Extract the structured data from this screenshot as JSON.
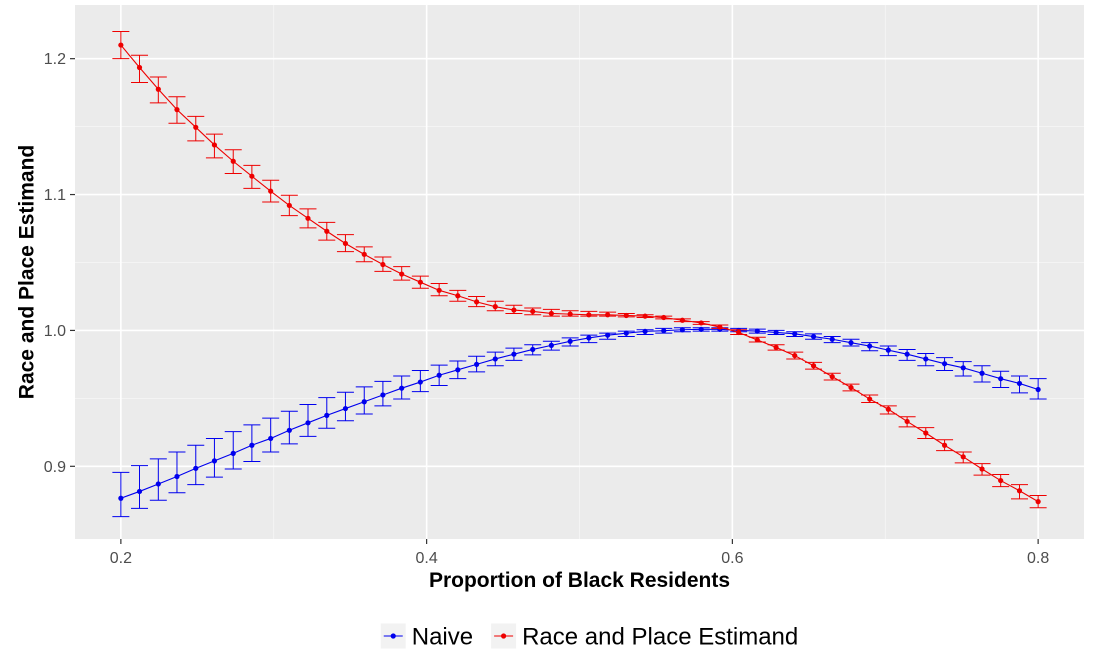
{
  "chart_data": {
    "type": "line",
    "xlabel": "Proportion of Black Residents",
    "ylabel": "Race and Place Estimand",
    "xlim": [
      0.17,
      0.83
    ],
    "ylim": [
      0.8465,
      1.2395
    ],
    "x_ticks": [
      0.2,
      0.4,
      0.6,
      0.8
    ],
    "x_tick_labels": [
      "0.2",
      "0.4",
      "0.6",
      "0.8"
    ],
    "y_ticks": [
      0.9,
      1.0,
      1.1,
      1.2
    ],
    "y_tick_labels": [
      "0.9",
      "1.0",
      "1.1",
      "1.2"
    ],
    "grid": true,
    "error_bars": true,
    "legend_position": "bottom",
    "x": [
      0.2,
      0.2122,
      0.2245,
      0.2367,
      0.249,
      0.2612,
      0.2735,
      0.2857,
      0.298,
      0.3102,
      0.3224,
      0.3347,
      0.3469,
      0.3592,
      0.3714,
      0.3837,
      0.3959,
      0.4082,
      0.4204,
      0.4327,
      0.4449,
      0.4571,
      0.4694,
      0.4816,
      0.4939,
      0.5061,
      0.5184,
      0.5306,
      0.5429,
      0.5551,
      0.5673,
      0.5796,
      0.5918,
      0.6041,
      0.6163,
      0.6286,
      0.6408,
      0.6531,
      0.6653,
      0.6776,
      0.6898,
      0.702,
      0.7143,
      0.7265,
      0.7388,
      0.751,
      0.7633,
      0.7755,
      0.7878,
      0.8
    ],
    "series": [
      {
        "name": "Naive",
        "color": "#0000ee",
        "values": [
          0.8765,
          0.8815,
          0.887,
          0.8925,
          0.8985,
          0.904,
          0.9095,
          0.9155,
          0.9205,
          0.9265,
          0.932,
          0.9375,
          0.9425,
          0.9475,
          0.9525,
          0.9575,
          0.962,
          0.967,
          0.971,
          0.975,
          0.979,
          0.9825,
          0.986,
          0.989,
          0.992,
          0.9945,
          0.9965,
          0.998,
          0.9993,
          0.9998,
          1.0005,
          1.0008,
          1.0008,
          1.0,
          0.9995,
          0.9985,
          0.9975,
          0.9955,
          0.9935,
          0.991,
          0.9885,
          0.9855,
          0.9825,
          0.979,
          0.9755,
          0.9725,
          0.9685,
          0.9645,
          0.961,
          0.9565
        ],
        "lower": [
          0.863,
          0.869,
          0.875,
          0.8805,
          0.8865,
          0.892,
          0.898,
          0.9035,
          0.9105,
          0.9165,
          0.922,
          0.928,
          0.9335,
          0.9385,
          0.9445,
          0.9495,
          0.955,
          0.9595,
          0.9645,
          0.9695,
          0.974,
          0.978,
          0.982,
          0.9855,
          0.9885,
          0.991,
          0.9935,
          0.9955,
          0.997,
          0.998,
          0.999,
          0.9995,
          0.9995,
          0.999,
          0.998,
          0.997,
          0.9955,
          0.9935,
          0.991,
          0.9885,
          0.985,
          0.9815,
          0.978,
          0.974,
          0.9705,
          0.9665,
          0.962,
          0.958,
          0.954,
          0.9495
        ],
        "upper": [
          0.8955,
          0.9005,
          0.9055,
          0.9105,
          0.9155,
          0.9205,
          0.9255,
          0.9305,
          0.9355,
          0.9405,
          0.9455,
          0.9505,
          0.9545,
          0.9585,
          0.9625,
          0.9665,
          0.9705,
          0.9745,
          0.9775,
          0.981,
          0.984,
          0.987,
          0.9895,
          0.992,
          0.9945,
          0.9965,
          0.998,
          0.9995,
          1.0005,
          1.0015,
          1.002,
          1.002,
          1.002,
          1.0015,
          1.001,
          1.0,
          0.999,
          0.9975,
          0.9955,
          0.9935,
          0.991,
          0.9885,
          0.986,
          0.983,
          0.98,
          0.977,
          0.974,
          0.97,
          0.9665,
          0.9645
        ]
      },
      {
        "name": "Race and Place Estimand",
        "color": "#ee0000",
        "values": [
          1.21,
          1.1935,
          1.1775,
          1.1625,
          1.1495,
          1.1365,
          1.1245,
          1.1135,
          1.1025,
          1.092,
          1.0825,
          1.073,
          1.064,
          1.056,
          1.0485,
          1.0415,
          1.0355,
          1.0295,
          1.0255,
          1.021,
          1.0175,
          1.015,
          1.014,
          1.0125,
          1.012,
          1.0115,
          1.0115,
          1.011,
          1.0105,
          1.0095,
          1.0075,
          1.0055,
          1.0025,
          0.9985,
          0.993,
          0.9875,
          0.9815,
          0.974,
          0.966,
          0.958,
          0.9495,
          0.942,
          0.933,
          0.9245,
          0.9155,
          0.907,
          0.898,
          0.8895,
          0.882,
          0.874
        ],
        "lower": [
          1.2,
          1.1825,
          1.1675,
          1.1525,
          1.1395,
          1.127,
          1.1155,
          1.1045,
          1.0945,
          1.0845,
          1.0755,
          1.0665,
          1.058,
          1.0505,
          1.0435,
          1.037,
          1.031,
          1.0255,
          1.0215,
          1.0175,
          1.0145,
          1.0125,
          1.0115,
          1.0105,
          1.0105,
          1.0105,
          1.0105,
          1.01,
          1.0095,
          1.0085,
          1.0065,
          1.0045,
          1.0015,
          0.997,
          0.9915,
          0.9855,
          0.979,
          0.9715,
          0.9635,
          0.9555,
          0.947,
          0.9385,
          0.929,
          0.9205,
          0.9115,
          0.9025,
          0.8935,
          0.885,
          0.876,
          0.8695
        ],
        "upper": [
          1.22,
          1.2025,
          1.1865,
          1.172,
          1.1575,
          1.1445,
          1.133,
          1.1215,
          1.1105,
          1.0995,
          1.0895,
          1.0795,
          1.0705,
          1.0615,
          1.054,
          1.047,
          1.04,
          1.0345,
          1.0295,
          1.025,
          1.0215,
          1.0185,
          1.0165,
          1.0155,
          1.0145,
          1.014,
          1.0135,
          1.0125,
          1.0115,
          1.0105,
          1.0085,
          1.0065,
          1.004,
          1.0005,
          0.995,
          0.9895,
          0.984,
          0.9765,
          0.9685,
          0.9605,
          0.9525,
          0.9445,
          0.9365,
          0.9285,
          0.9195,
          0.9105,
          0.902,
          0.894,
          0.8865,
          0.8785
        ]
      }
    ]
  }
}
